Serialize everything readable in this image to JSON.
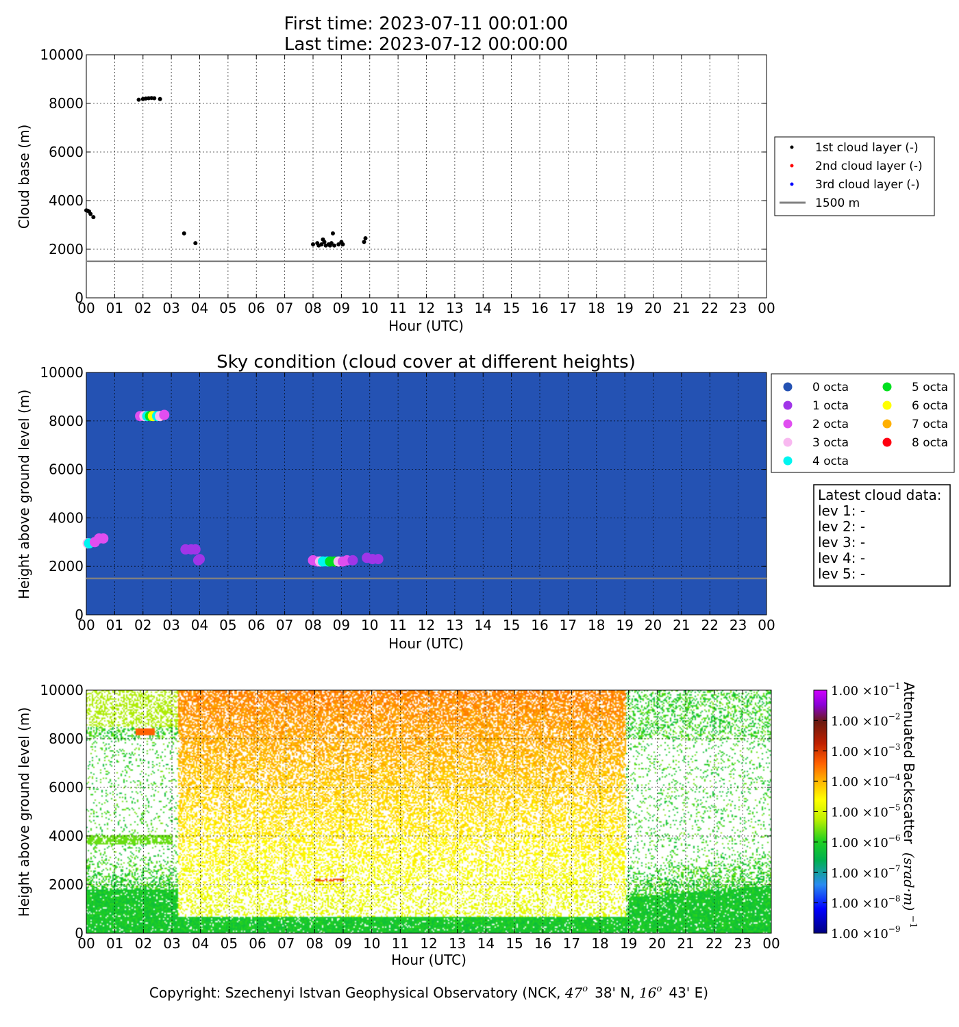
{
  "header": {
    "line1": "First time: 2023-07-11 00:01:00",
    "line2": "Last time: 2023-07-12 00:00:00"
  },
  "hour_labels": [
    "00",
    "01",
    "02",
    "03",
    "04",
    "05",
    "06",
    "07",
    "08",
    "09",
    "10",
    "11",
    "12",
    "13",
    "14",
    "15",
    "16",
    "17",
    "18",
    "19",
    "20",
    "21",
    "22",
    "23",
    "00"
  ],
  "y_ticks": [
    0,
    2000,
    4000,
    6000,
    8000,
    10000
  ],
  "reference_height_m": 1500,
  "colors": {
    "layer1": "#000000",
    "layer2": "#ff0000",
    "layer3": "#0000ff",
    "ref_line": "#808080",
    "sky_bg": "#2452b3"
  },
  "chart_data": [
    {
      "type": "scatter",
      "title": "",
      "xlabel": "Hour (UTC)",
      "ylabel": "Cloud base (m)",
      "xlim": [
        0,
        24
      ],
      "ylim": [
        0,
        10000
      ],
      "grid": true,
      "legend_position": "right",
      "series": [
        {
          "name": "1st cloud layer (-)",
          "color": "#000000",
          "points": [
            [
              0.0,
              3600
            ],
            [
              0.05,
              3580
            ],
            [
              0.1,
              3550
            ],
            [
              0.15,
              3450
            ],
            [
              0.25,
              3320
            ],
            [
              1.85,
              8150
            ],
            [
              2.0,
              8180
            ],
            [
              2.1,
              8200
            ],
            [
              2.2,
              8210
            ],
            [
              2.3,
              8220
            ],
            [
              2.4,
              8210
            ],
            [
              2.6,
              8180
            ],
            [
              3.45,
              2650
            ],
            [
              3.85,
              2250
            ],
            [
              8.0,
              2200
            ],
            [
              8.15,
              2250
            ],
            [
              8.2,
              2150
            ],
            [
              8.3,
              2200
            ],
            [
              8.35,
              2400
            ],
            [
              8.4,
              2300
            ],
            [
              8.45,
              2150
            ],
            [
              8.55,
              2200
            ],
            [
              8.6,
              2150
            ],
            [
              8.65,
              2250
            ],
            [
              8.7,
              2650
            ],
            [
              8.75,
              2150
            ],
            [
              8.9,
              2200
            ],
            [
              9.0,
              2300
            ],
            [
              9.05,
              2200
            ],
            [
              9.8,
              2300
            ],
            [
              9.85,
              2450
            ]
          ]
        },
        {
          "name": "2nd cloud layer (-)",
          "color": "#ff0000",
          "points": []
        },
        {
          "name": "3rd cloud layer (-)",
          "color": "#0000ff",
          "points": []
        },
        {
          "name": "1500 m",
          "color": "#808080",
          "kind": "hline",
          "y": 1500
        }
      ]
    },
    {
      "type": "scatter",
      "title": "Sky condition (cloud cover at different heights)",
      "xlabel": "Hour (UTC)",
      "ylabel": "Height above ground level (m)",
      "xlim": [
        0,
        24
      ],
      "ylim": [
        0,
        10000
      ],
      "grid": true,
      "background": "#2452b3",
      "legend_position": "right",
      "legend": [
        {
          "label": "0 octa",
          "color": "#2452b3"
        },
        {
          "label": "1 octa",
          "color": "#a035e8"
        },
        {
          "label": "2 octa",
          "color": "#e04ef0"
        },
        {
          "label": "3 octa",
          "color": "#f8b8f0"
        },
        {
          "label": "4 octa",
          "color": "#00f5f0"
        },
        {
          "label": "5 octa",
          "color": "#00e020"
        },
        {
          "label": "6 octa",
          "color": "#ffff00"
        },
        {
          "label": "7 octa",
          "color": "#ffb000"
        },
        {
          "label": "8 octa",
          "color": "#ff0010"
        }
      ],
      "points": [
        {
          "x": 0.05,
          "y": 2950,
          "octa": 3
        },
        {
          "x": 0.1,
          "y": 2950,
          "octa": 4
        },
        {
          "x": 0.3,
          "y": 3000,
          "octa": 2
        },
        {
          "x": 0.45,
          "y": 3150,
          "octa": 2
        },
        {
          "x": 0.6,
          "y": 3150,
          "octa": 2
        },
        {
          "x": 1.9,
          "y": 8200,
          "octa": 2
        },
        {
          "x": 2.05,
          "y": 8200,
          "octa": 3
        },
        {
          "x": 2.15,
          "y": 8200,
          "octa": 4
        },
        {
          "x": 2.25,
          "y": 8200,
          "octa": 5
        },
        {
          "x": 2.35,
          "y": 8200,
          "octa": 6
        },
        {
          "x": 2.5,
          "y": 8200,
          "octa": 4
        },
        {
          "x": 2.6,
          "y": 8200,
          "octa": 3
        },
        {
          "x": 2.75,
          "y": 8250,
          "octa": 2
        },
        {
          "x": 3.5,
          "y": 2700,
          "octa": 1
        },
        {
          "x": 3.7,
          "y": 2700,
          "octa": 1
        },
        {
          "x": 3.85,
          "y": 2700,
          "octa": 1
        },
        {
          "x": 3.95,
          "y": 2250,
          "octa": 1
        },
        {
          "x": 4.0,
          "y": 2300,
          "octa": 1
        },
        {
          "x": 8.0,
          "y": 2250,
          "octa": 2
        },
        {
          "x": 8.15,
          "y": 2200,
          "octa": 2
        },
        {
          "x": 8.25,
          "y": 2200,
          "octa": 3
        },
        {
          "x": 8.35,
          "y": 2200,
          "octa": 4
        },
        {
          "x": 8.5,
          "y": 2200,
          "octa": 4
        },
        {
          "x": 8.6,
          "y": 2200,
          "octa": 5
        },
        {
          "x": 8.75,
          "y": 2200,
          "octa": 5
        },
        {
          "x": 8.9,
          "y": 2200,
          "octa": 3
        },
        {
          "x": 9.05,
          "y": 2200,
          "octa": 2
        },
        {
          "x": 9.2,
          "y": 2250,
          "octa": 2
        },
        {
          "x": 9.4,
          "y": 2250,
          "octa": 1
        },
        {
          "x": 9.9,
          "y": 2350,
          "octa": 1
        },
        {
          "x": 10.1,
          "y": 2300,
          "octa": 1
        },
        {
          "x": 10.3,
          "y": 2300,
          "octa": 1
        }
      ],
      "reference_line": {
        "y": 1500,
        "color": "#808080"
      }
    },
    {
      "type": "heatmap",
      "title": "",
      "xlabel": "Hour (UTC)",
      "ylabel": "Height above ground level (m)",
      "xlim": [
        0,
        24
      ],
      "ylim": [
        0,
        10000
      ],
      "colorbar": {
        "label": "Attenuated Backscatter",
        "unit_math": "(srad·m)",
        "unit_exp": "−1",
        "ticks": [
          {
            "mantissa": "1.00",
            "exp": "−1"
          },
          {
            "mantissa": "1.00",
            "exp": "−2"
          },
          {
            "mantissa": "1.00",
            "exp": "−3"
          },
          {
            "mantissa": "1.00",
            "exp": "−4"
          },
          {
            "mantissa": "1.00",
            "exp": "−5"
          },
          {
            "mantissa": "1.00",
            "exp": "−6"
          },
          {
            "mantissa": "1.00",
            "exp": "−7"
          },
          {
            "mantissa": "1.00",
            "exp": "−8"
          },
          {
            "mantissa": "1.00",
            "exp": "−9"
          }
        ],
        "scale": "log",
        "range": [
          1e-09,
          0.1
        ]
      }
    }
  ],
  "cloud_box": {
    "title": "Latest cloud data:",
    "lines": [
      "lev 1: -",
      "lev 2: -",
      "lev 3: -",
      "lev 4: -",
      "lev 5: -"
    ]
  },
  "footer": {
    "text_before": "Copyright: Szechenyi Istvan Geophysical Observatory (NCK, ",
    "lat_deg": "47",
    "deg_sym": "o",
    "lat_min": "38' N, ",
    "lon_deg": "16",
    "lon_min": "43' E)"
  }
}
